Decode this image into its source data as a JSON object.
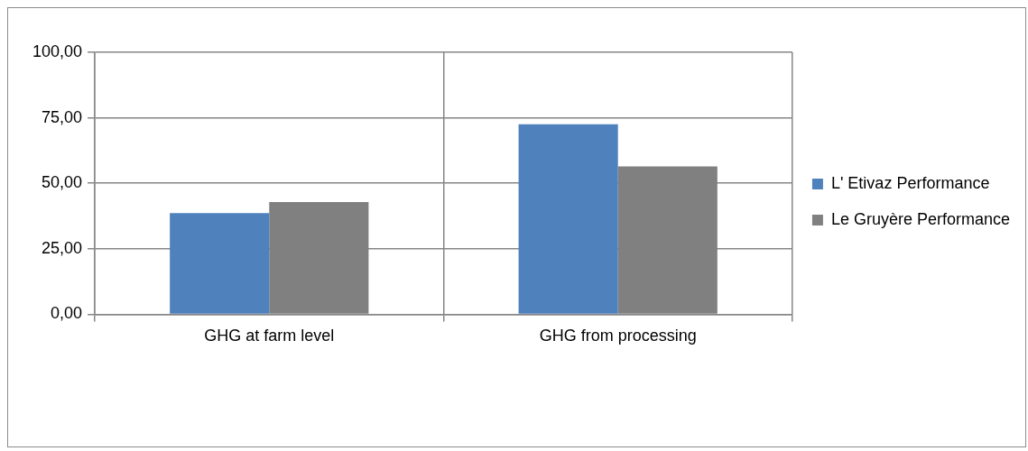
{
  "chart_data": {
    "type": "bar",
    "categories": [
      "GHG at farm level",
      "GHG from processing"
    ],
    "series": [
      {
        "name": "L' Etivaz Performance",
        "color": "#4f81bd",
        "values": [
          38.6,
          72.5
        ]
      },
      {
        "name": "Le Gruyère Performance",
        "color": "#808080",
        "values": [
          42.8,
          56.4
        ]
      }
    ],
    "ylim": [
      0,
      100
    ],
    "yticks": [
      {
        "value": 0,
        "label": "0,00"
      },
      {
        "value": 25,
        "label": "25,00"
      },
      {
        "value": 50,
        "label": "50,00"
      },
      {
        "value": 75,
        "label": "75,00"
      },
      {
        "value": 100,
        "label": "100,00"
      }
    ],
    "grid": true,
    "legend": "right"
  }
}
